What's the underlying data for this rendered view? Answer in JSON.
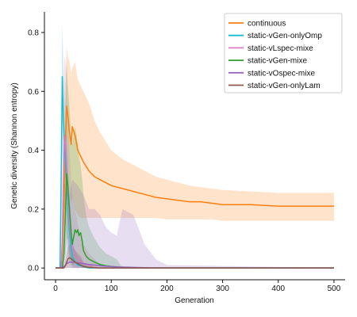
{
  "chart_data": {
    "type": "line",
    "title": "",
    "xlabel": "Generation",
    "ylabel": "Genetic diversity (Shannon entropy)",
    "xlim": [
      -20,
      520
    ],
    "ylim": [
      -0.04,
      0.87
    ],
    "x_ticks": [
      0,
      100,
      200,
      300,
      400,
      500
    ],
    "y_ticks": [
      0.0,
      0.2,
      0.4,
      0.6,
      0.8
    ],
    "x_tick_labels": [
      "0",
      "100",
      "200",
      "300",
      "400",
      "500"
    ],
    "y_tick_labels": [
      "0.0",
      "0.2",
      "0.4",
      "0.6",
      "0.8"
    ],
    "grid": false,
    "legend_position": "top-right",
    "series": [
      {
        "name": "continuous",
        "color": "#ff7f0e",
        "x": [
          0,
          10,
          12,
          15,
          18,
          20,
          22,
          25,
          28,
          30,
          35,
          40,
          45,
          50,
          60,
          70,
          80,
          90,
          100,
          120,
          140,
          160,
          180,
          200,
          220,
          240,
          260,
          280,
          300,
          350,
          400,
          450,
          500
        ],
        "y": [
          0.0,
          0.0,
          0.05,
          0.2,
          0.45,
          0.55,
          0.52,
          0.46,
          0.42,
          0.48,
          0.45,
          0.4,
          0.38,
          0.36,
          0.33,
          0.31,
          0.3,
          0.29,
          0.28,
          0.27,
          0.26,
          0.25,
          0.24,
          0.235,
          0.23,
          0.225,
          0.225,
          0.22,
          0.215,
          0.215,
          0.21,
          0.21,
          0.21
        ],
        "band_lower": [
          0.0,
          0.0,
          0.0,
          0.05,
          0.2,
          0.3,
          0.3,
          0.25,
          0.22,
          0.24,
          0.2,
          0.18,
          0.17,
          0.17,
          0.17,
          0.17,
          0.17,
          0.17,
          0.17,
          0.17,
          0.17,
          0.17,
          0.17,
          0.165,
          0.165,
          0.165,
          0.165,
          0.165,
          0.16,
          0.16,
          0.16,
          0.16,
          0.16
        ],
        "band_upper": [
          0.0,
          0.0,
          0.1,
          0.4,
          0.66,
          0.75,
          0.72,
          0.7,
          0.66,
          0.68,
          0.7,
          0.64,
          0.62,
          0.6,
          0.56,
          0.5,
          0.46,
          0.43,
          0.4,
          0.37,
          0.35,
          0.33,
          0.31,
          0.3,
          0.29,
          0.28,
          0.275,
          0.27,
          0.265,
          0.26,
          0.255,
          0.255,
          0.255
        ]
      },
      {
        "name": "static-vGen-onlyOmp",
        "color": "#17becf",
        "x": [
          0,
          8,
          10,
          12,
          14,
          16,
          18,
          20,
          22,
          25,
          28,
          30,
          35,
          40,
          50,
          60,
          500
        ],
        "y": [
          0.0,
          0.0,
          0.3,
          0.65,
          0.5,
          0.42,
          0.35,
          0.28,
          0.2,
          0.12,
          0.07,
          0.04,
          0.02,
          0.01,
          0.005,
          0.0,
          0.0
        ],
        "band_lower": [
          0.0,
          0.0,
          0.1,
          0.4,
          0.3,
          0.2,
          0.15,
          0.1,
          0.05,
          0.02,
          0.01,
          0.0,
          0.0,
          0.0,
          0.0,
          0.0,
          0.0
        ],
        "band_upper": [
          0.0,
          0.0,
          0.5,
          0.83,
          0.7,
          0.62,
          0.55,
          0.45,
          0.35,
          0.25,
          0.16,
          0.1,
          0.06,
          0.04,
          0.02,
          0.0,
          0.0
        ]
      },
      {
        "name": "static-vLspec-mixe",
        "color": "#e377c2",
        "x": [
          0,
          10,
          12,
          14,
          16,
          18,
          20,
          22,
          25,
          28,
          30,
          35,
          40,
          45,
          50,
          60,
          70,
          80,
          100,
          500
        ],
        "y": [
          0.0,
          0.0,
          0.1,
          0.3,
          0.45,
          0.42,
          0.35,
          0.25,
          0.15,
          0.1,
          0.07,
          0.04,
          0.03,
          0.02,
          0.015,
          0.01,
          0.0,
          0.0,
          0.0,
          0.0
        ],
        "band_lower": [
          0.0,
          0.0,
          0.0,
          0.1,
          0.2,
          0.2,
          0.15,
          0.08,
          0.04,
          0.02,
          0.01,
          0.0,
          0.0,
          0.0,
          0.0,
          0.0,
          0.0,
          0.0,
          0.0,
          0.0
        ],
        "band_upper": [
          0.0,
          0.0,
          0.25,
          0.55,
          0.72,
          0.7,
          0.65,
          0.55,
          0.4,
          0.3,
          0.25,
          0.2,
          0.15,
          0.1,
          0.08,
          0.05,
          0.03,
          0.01,
          0.0,
          0.0
        ]
      },
      {
        "name": "static-vGen-mixe",
        "color": "#2ca02c",
        "x": [
          0,
          12,
          15,
          18,
          20,
          22,
          25,
          28,
          30,
          32,
          35,
          38,
          40,
          42,
          45,
          48,
          50,
          55,
          60,
          70,
          80,
          90,
          100,
          110,
          120,
          500
        ],
        "y": [
          0.0,
          0.0,
          0.05,
          0.2,
          0.32,
          0.28,
          0.2,
          0.12,
          0.08,
          0.1,
          0.13,
          0.12,
          0.13,
          0.11,
          0.12,
          0.09,
          0.06,
          0.04,
          0.03,
          0.02,
          0.012,
          0.008,
          0.005,
          0.002,
          0.0,
          0.0
        ],
        "band_lower": [
          0.0,
          0.0,
          0.0,
          0.05,
          0.1,
          0.1,
          0.05,
          0.02,
          0.01,
          0.01,
          0.02,
          0.02,
          0.02,
          0.02,
          0.02,
          0.01,
          0.0,
          0.0,
          0.0,
          0.0,
          0.0,
          0.0,
          0.0,
          0.0,
          0.0,
          0.0
        ],
        "band_upper": [
          0.0,
          0.0,
          0.2,
          0.55,
          0.7,
          0.62,
          0.55,
          0.45,
          0.42,
          0.45,
          0.48,
          0.45,
          0.42,
          0.38,
          0.35,
          0.3,
          0.25,
          0.18,
          0.14,
          0.1,
          0.07,
          0.05,
          0.04,
          0.03,
          0.0,
          0.0
        ]
      },
      {
        "name": "static-vOspec-mixe",
        "color": "#9467bd",
        "x": [
          0,
          10,
          15,
          18,
          20,
          25,
          30,
          40,
          50,
          60,
          70,
          80,
          90,
          100,
          110,
          120,
          140,
          160,
          180,
          200,
          500
        ],
        "y": [
          0.0,
          0.0,
          0.005,
          0.01,
          0.015,
          0.02,
          0.02,
          0.018,
          0.015,
          0.012,
          0.01,
          0.008,
          0.006,
          0.005,
          0.004,
          0.003,
          0.002,
          0.001,
          0.0,
          0.0,
          0.0
        ],
        "band_lower": [
          0.0,
          0.0,
          0.0,
          0.0,
          0.0,
          0.0,
          0.0,
          0.0,
          0.0,
          0.0,
          0.0,
          0.0,
          0.0,
          0.0,
          0.0,
          0.0,
          0.0,
          0.0,
          0.0,
          0.0,
          0.0
        ],
        "band_upper": [
          0.0,
          0.0,
          0.05,
          0.12,
          0.2,
          0.25,
          0.3,
          0.28,
          0.25,
          0.2,
          0.2,
          0.18,
          0.14,
          0.12,
          0.11,
          0.2,
          0.18,
          0.08,
          0.03,
          0.01,
          0.0
        ]
      },
      {
        "name": "static-vGen-onlyLam",
        "color": "#8c564b",
        "x": [
          0,
          15,
          18,
          20,
          22,
          25,
          28,
          30,
          35,
          40,
          45,
          50,
          60,
          80,
          500
        ],
        "y": [
          0.0,
          0.0,
          0.01,
          0.02,
          0.03,
          0.035,
          0.032,
          0.028,
          0.02,
          0.015,
          0.01,
          0.005,
          0.002,
          0.0,
          0.0
        ],
        "band_lower": [
          0.0,
          0.0,
          0.0,
          0.0,
          0.0,
          0.0,
          0.0,
          0.0,
          0.0,
          0.0,
          0.0,
          0.0,
          0.0,
          0.0,
          0.0
        ],
        "band_upper": [
          0.0,
          0.0,
          0.03,
          0.05,
          0.07,
          0.08,
          0.08,
          0.075,
          0.06,
          0.05,
          0.04,
          0.02,
          0.01,
          0.0,
          0.0
        ]
      }
    ]
  }
}
